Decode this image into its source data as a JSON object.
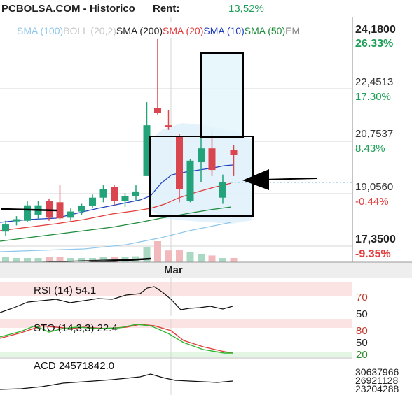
{
  "header": {
    "title": "PCBOLSA.COM - Historico",
    "rent_label": "Rent:",
    "rent_value": "13,52%",
    "rent_color": "#1e9e57"
  },
  "legend": {
    "items": [
      {
        "label": "SMA (100)",
        "color": "#8fc7ea"
      },
      {
        "label": "BOLL (20,2)",
        "color": "#c7c7c7"
      },
      {
        "label": "SMA (200)",
        "color": "#222222"
      },
      {
        "label": "SMA (20)",
        "color": "#e23b3b"
      },
      {
        "label": "SMA (10)",
        "color": "#1f3fbf"
      },
      {
        "label": "SMA (50)",
        "color": "#1e8a3c"
      },
      {
        "label": "EM",
        "color": "#888888"
      }
    ]
  },
  "price_axis": {
    "ticks": [
      {
        "price": "24,1800",
        "pct": "26.33%",
        "pct_color": "#1e9e57"
      },
      {
        "price": "22,4513",
        "pct": "17.30%",
        "pct_color": "#1e9e57"
      },
      {
        "price": "20,7537",
        "pct": "8.43%",
        "pct_color": "#1e9e57"
      },
      {
        "price": "19,0560",
        "pct": "-0.44%",
        "pct_color": "#e23b3b"
      },
      {
        "price": "17,3500",
        "pct": "-9.35%",
        "pct_color": "#e23b3b"
      }
    ]
  },
  "x_axis": {
    "month_label": "Mar"
  },
  "rsi": {
    "label": "RSI (14) 54.1",
    "levels": [
      "70",
      "50"
    ]
  },
  "sto": {
    "label": "STO (14,3,3) 22.4",
    "levels": [
      "80",
      "50",
      "20"
    ]
  },
  "acd": {
    "label": "ACD  24571842.0",
    "levels": [
      "30637966",
      "26921128",
      "23204288"
    ]
  },
  "colors": {
    "up": "#22a37a",
    "down": "#d9464f",
    "grid": "#d6d6d6"
  },
  "chart_data": {
    "type": "candlestick",
    "ylim": [
      17.35,
      24.18
    ],
    "current_price": 19.14,
    "candles": [
      {
        "o": 17.55,
        "h": 17.9,
        "l": 17.4,
        "c": 17.78
      },
      {
        "o": 17.88,
        "h": 18.05,
        "l": 17.75,
        "c": 17.95
      },
      {
        "o": 17.9,
        "h": 18.55,
        "l": 17.85,
        "c": 18.4
      },
      {
        "o": 18.1,
        "h": 18.55,
        "l": 17.95,
        "c": 18.4
      },
      {
        "o": 18.55,
        "h": 18.62,
        "l": 17.9,
        "c": 18.0
      },
      {
        "o": 18.5,
        "h": 19.05,
        "l": 17.95,
        "c": 17.98
      },
      {
        "o": 18.0,
        "h": 18.3,
        "l": 17.9,
        "c": 18.2
      },
      {
        "o": 18.2,
        "h": 18.45,
        "l": 18.1,
        "c": 18.38
      },
      {
        "o": 18.38,
        "h": 18.75,
        "l": 18.3,
        "c": 18.65
      },
      {
        "o": 18.65,
        "h": 19.05,
        "l": 18.5,
        "c": 18.92
      },
      {
        "o": 19.0,
        "h": 19.05,
        "l": 18.4,
        "c": 18.55
      },
      {
        "o": 18.55,
        "h": 18.8,
        "l": 18.35,
        "c": 18.7
      },
      {
        "o": 18.7,
        "h": 19.05,
        "l": 18.55,
        "c": 18.85
      },
      {
        "o": 19.35,
        "h": 21.75,
        "l": 19.35,
        "c": 21.0
      },
      {
        "o": 21.55,
        "h": 23.8,
        "l": 21.35,
        "c": 21.4
      },
      {
        "o": 21.0,
        "h": 21.5,
        "l": 20.85,
        "c": 20.95
      },
      {
        "o": 20.65,
        "h": 20.72,
        "l": 18.5,
        "c": 18.92
      },
      {
        "o": 18.55,
        "h": 19.9,
        "l": 18.5,
        "c": 19.85
      },
      {
        "o": 19.8,
        "h": 20.85,
        "l": 19.15,
        "c": 20.25
      },
      {
        "o": 20.25,
        "h": 20.8,
        "l": 19.35,
        "c": 19.55
      },
      {
        "o": 18.65,
        "h": 19.4,
        "l": 18.45,
        "c": 19.15
      },
      {
        "o": 20.2,
        "h": 20.35,
        "l": 19.35,
        "c": 20.05
      }
    ],
    "volumes": [
      0.12,
      0.1,
      0.1,
      0.1,
      0.12,
      0.12,
      0.1,
      0.1,
      0.1,
      0.12,
      0.12,
      0.12,
      0.14,
      0.35,
      0.5,
      0.28,
      0.3,
      0.25,
      0.2,
      0.16,
      0.1,
      0.1
    ]
  }
}
